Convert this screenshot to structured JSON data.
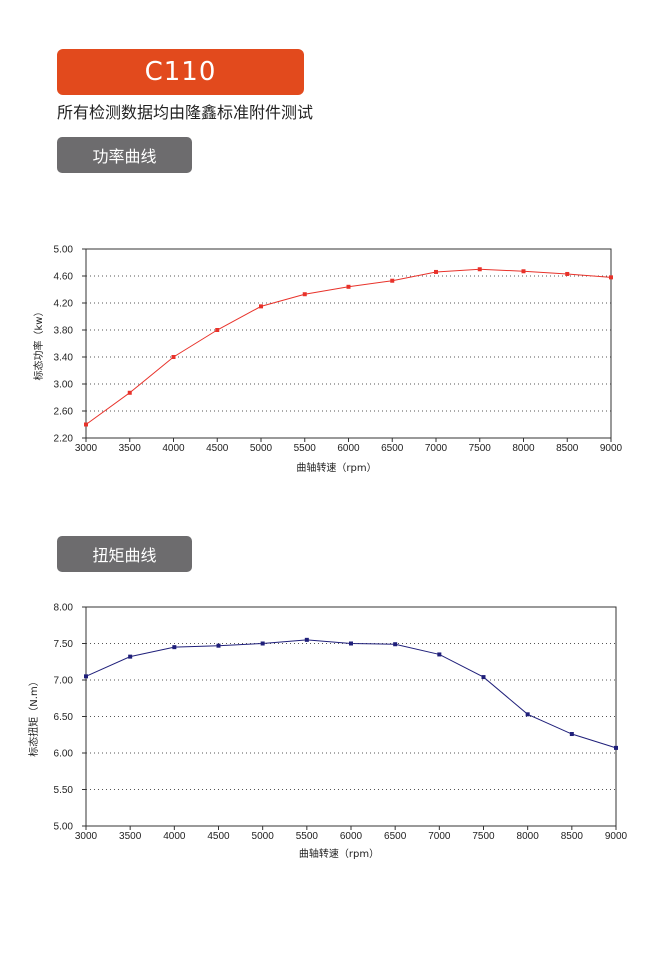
{
  "header": {
    "title": "C110",
    "subtitle": "所有检测数据均由隆鑫标准附件测试",
    "accent_color": "#e24a1d",
    "tag_color": "#6d6c6e"
  },
  "sections": [
    {
      "label": "功率曲线"
    },
    {
      "label": "扭矩曲线"
    }
  ],
  "chart_data": [
    {
      "type": "line",
      "xlabel": "曲轴转速（rpm）",
      "ylabel": "标态功率（kw）",
      "x": [
        3000,
        3500,
        4000,
        4500,
        5000,
        5500,
        6000,
        6500,
        7000,
        7500,
        8000,
        8500,
        9000
      ],
      "series": [
        {
          "values": [
            2.4,
            2.87,
            3.4,
            3.8,
            4.15,
            4.33,
            4.44,
            4.53,
            4.66,
            4.7,
            4.67,
            4.63,
            4.58
          ],
          "color": "#e8322a"
        }
      ],
      "xlim": [
        3000,
        9000
      ],
      "ylim": [
        2.2,
        5.0
      ],
      "yticks": [
        "2.20",
        "2.60",
        "3.00",
        "3.40",
        "3.80",
        "4.20",
        "4.60",
        "5.00"
      ],
      "xticks": [
        "3000",
        "3500",
        "4000",
        "4500",
        "5000",
        "5500",
        "6000",
        "6500",
        "7000",
        "7500",
        "8000",
        "8500",
        "9000"
      ],
      "grid": "horizontal dotted"
    },
    {
      "type": "line",
      "xlabel": "曲轴转速（rpm）",
      "ylabel": "标态扭矩（N.m）",
      "x": [
        3000,
        3500,
        4000,
        4500,
        5000,
        5500,
        6000,
        6500,
        7000,
        7500,
        8000,
        8500,
        9000
      ],
      "series": [
        {
          "values": [
            7.05,
            7.32,
            7.45,
            7.47,
            7.5,
            7.55,
            7.5,
            7.49,
            7.35,
            7.04,
            6.53,
            6.26,
            6.07
          ],
          "color": "#1f1f7a"
        }
      ],
      "xlim": [
        3000,
        9000
      ],
      "ylim": [
        5.0,
        8.0
      ],
      "yticks": [
        "5.00",
        "5.50",
        "6.00",
        "6.50",
        "7.00",
        "7.50",
        "8.00"
      ],
      "xticks": [
        "3000",
        "3500",
        "4000",
        "4500",
        "5000",
        "5500",
        "6000",
        "6500",
        "7000",
        "7500",
        "8000",
        "8500",
        "9000"
      ],
      "grid": "horizontal dotted"
    }
  ]
}
